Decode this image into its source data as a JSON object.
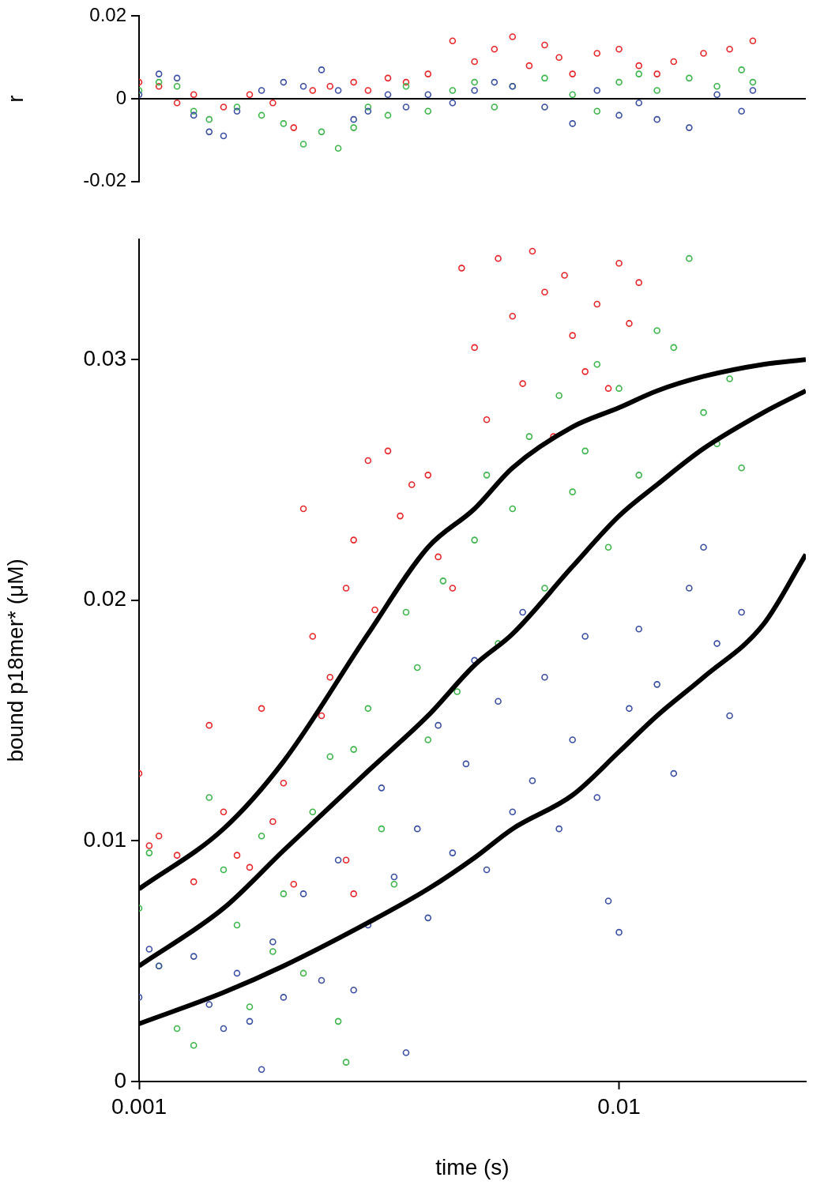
{
  "chart_data": [
    {
      "type": "scatter",
      "y_label": "r",
      "log": "x",
      "tick_labels": "y",
      "xlim": [
        0.001,
        0.0245
      ],
      "xticks": [
        0.001,
        0.01
      ],
      "ylim": [
        -0.02,
        0.02
      ],
      "yticks": [
        -0.02,
        0,
        0.02
      ],
      "series": [
        {
          "color": "#3a4fa3",
          "marker": "circle",
          "x": [
            0.001,
            0.0011,
            0.0012,
            0.0013,
            0.0014,
            0.0015,
            0.0016,
            0.0018,
            0.002,
            0.0022,
            0.0024,
            0.0026,
            0.0028,
            0.003,
            0.0033,
            0.0036,
            0.004,
            0.0045,
            0.005,
            0.0055,
            0.006,
            0.007,
            0.008,
            0.009,
            0.01,
            0.011,
            0.012,
            0.014,
            0.016,
            0.018,
            0.019
          ],
          "values": [
            0.001,
            0.006,
            0.005,
            -0.004,
            -0.008,
            -0.009,
            -0.003,
            0.002,
            0.004,
            0.003,
            0.007,
            0.002,
            -0.005,
            -0.003,
            0.001,
            -0.002,
            0.001,
            -0.001,
            0.002,
            0.004,
            0.003,
            -0.002,
            -0.006,
            0.002,
            -0.004,
            -0.001,
            -0.005,
            -0.007,
            0.001,
            -0.003,
            0.002
          ]
        },
        {
          "color": "#3cb54a",
          "marker": "circle",
          "x": [
            0.001,
            0.0011,
            0.0012,
            0.0013,
            0.0014,
            0.0016,
            0.0018,
            0.002,
            0.0022,
            0.0024,
            0.0026,
            0.0028,
            0.003,
            0.0033,
            0.0036,
            0.004,
            0.0045,
            0.005,
            0.0055,
            0.006,
            0.007,
            0.008,
            0.009,
            0.01,
            0.011,
            0.012,
            0.014,
            0.016,
            0.018,
            0.019
          ],
          "values": [
            0.002,
            0.004,
            0.003,
            -0.003,
            -0.005,
            -0.002,
            -0.004,
            -0.006,
            -0.011,
            -0.008,
            -0.012,
            -0.007,
            -0.002,
            -0.004,
            0.003,
            -0.003,
            0.002,
            0.004,
            -0.002,
            0.003,
            0.005,
            0.001,
            -0.003,
            0.004,
            0.006,
            0.002,
            0.005,
            0.003,
            0.007,
            0.004
          ]
        },
        {
          "color": "#e8262a",
          "marker": "circle",
          "x": [
            0.001,
            0.0011,
            0.0012,
            0.0013,
            0.0015,
            0.0017,
            0.0019,
            0.0021,
            0.0023,
            0.0025,
            0.0028,
            0.003,
            0.0033,
            0.0036,
            0.004,
            0.0045,
            0.005,
            0.0055,
            0.006,
            0.0065,
            0.007,
            0.0075,
            0.008,
            0.009,
            0.01,
            0.011,
            0.012,
            0.013,
            0.015,
            0.017,
            0.019
          ],
          "values": [
            0.004,
            0.003,
            -0.001,
            0.001,
            -0.002,
            0.001,
            -0.001,
            -0.007,
            0.002,
            0.003,
            0.004,
            0.002,
            0.005,
            0.004,
            0.006,
            0.014,
            0.009,
            0.012,
            0.015,
            0.008,
            0.013,
            0.01,
            0.006,
            0.011,
            0.012,
            0.008,
            0.006,
            0.009,
            0.011,
            0.012,
            0.014
          ]
        }
      ]
    },
    {
      "type": "scatter",
      "x_label": "time (s)",
      "y_label": "bound p18mer* (μM)",
      "log": "x",
      "xlim": [
        0.001,
        0.0245
      ],
      "xticks": [
        0.001,
        0.01
      ],
      "ylim": [
        0,
        0.035
      ],
      "yticks": [
        0,
        0.01,
        0.02,
        0.03
      ],
      "series": [
        {
          "color": "#3a4fa3",
          "marker": "circle",
          "x": [
            0.001,
            0.00105,
            0.0011,
            0.0013,
            0.0014,
            0.0015,
            0.0016,
            0.0017,
            0.0018,
            0.0019,
            0.002,
            0.0022,
            0.0024,
            0.0026,
            0.0028,
            0.003,
            0.0032,
            0.0034,
            0.0036,
            0.0038,
            0.004,
            0.0042,
            0.0045,
            0.0048,
            0.005,
            0.0053,
            0.0056,
            0.006,
            0.0063,
            0.0066,
            0.007,
            0.0075,
            0.008,
            0.0085,
            0.009,
            0.0095,
            0.01,
            0.0105,
            0.011,
            0.012,
            0.013,
            0.014,
            0.015,
            0.016,
            0.017,
            0.018
          ],
          "values": [
            0.0035,
            0.0055,
            0.0048,
            0.0052,
            0.0032,
            0.0022,
            0.0045,
            0.0025,
            0.0005,
            0.0058,
            0.0035,
            0.0078,
            0.0042,
            0.0092,
            0.0038,
            0.0065,
            0.0122,
            0.0085,
            0.0012,
            0.0105,
            0.0068,
            0.0148,
            0.0095,
            0.0132,
            0.0175,
            0.0088,
            0.0158,
            0.0112,
            0.0195,
            0.0125,
            0.0168,
            0.0105,
            0.0142,
            0.0185,
            0.0118,
            0.0075,
            0.0062,
            0.0155,
            0.0188,
            0.0165,
            0.0128,
            0.0205,
            0.0222,
            0.0182,
            0.0152,
            0.0195
          ]
        },
        {
          "color": "#3cb54a",
          "marker": "circle",
          "x": [
            0.001,
            0.00105,
            0.0011,
            0.0012,
            0.0013,
            0.0014,
            0.0015,
            0.0016,
            0.0017,
            0.0018,
            0.0019,
            0.002,
            0.0022,
            0.0023,
            0.0025,
            0.0026,
            0.0027,
            0.0028,
            0.003,
            0.0032,
            0.0034,
            0.0036,
            0.0038,
            0.004,
            0.0043,
            0.0046,
            0.005,
            0.0053,
            0.0056,
            0.006,
            0.0065,
            0.007,
            0.0075,
            0.008,
            0.0085,
            0.009,
            0.0095,
            0.01,
            0.011,
            0.012,
            0.013,
            0.014,
            0.015,
            0.016,
            0.017,
            0.018
          ],
          "values": [
            0.0072,
            0.0095,
            0.0048,
            0.0022,
            0.0015,
            0.0118,
            0.0088,
            0.0065,
            0.0031,
            0.0102,
            0.0054,
            0.0078,
            0.0045,
            0.0112,
            0.0135,
            0.0025,
            0.0008,
            0.0138,
            0.0155,
            0.0105,
            0.0082,
            0.0195,
            0.0172,
            0.0142,
            0.0208,
            0.0162,
            0.0225,
            0.0252,
            0.0182,
            0.0238,
            0.0268,
            0.0205,
            0.0285,
            0.0245,
            0.0262,
            0.0298,
            0.0222,
            0.0288,
            0.0252,
            0.0312,
            0.0305,
            0.0342,
            0.0278,
            0.0265,
            0.0292,
            0.0255
          ]
        },
        {
          "color": "#e8262a",
          "marker": "circle",
          "x": [
            0.001,
            0.00105,
            0.0011,
            0.0012,
            0.0013,
            0.0014,
            0.0015,
            0.0016,
            0.0017,
            0.0018,
            0.0019,
            0.002,
            0.0021,
            0.0022,
            0.0023,
            0.0024,
            0.0025,
            0.0027,
            0.0027,
            0.0028,
            0.0028,
            0.003,
            0.0031,
            0.0033,
            0.0035,
            0.0037,
            0.004,
            0.0042,
            0.0045,
            0.0047,
            0.005,
            0.0053,
            0.0056,
            0.006,
            0.0063,
            0.0066,
            0.007,
            0.0073,
            0.0077,
            0.008,
            0.0085,
            0.009,
            0.0095,
            0.01,
            0.0105,
            0.011
          ],
          "values": [
            0.0128,
            0.0098,
            0.0102,
            0.0094,
            0.0083,
            0.0148,
            0.0112,
            0.0094,
            0.0089,
            0.0155,
            0.0108,
            0.0124,
            0.0082,
            0.0238,
            0.0185,
            0.0152,
            0.0168,
            0.0205,
            0.0092,
            0.0225,
            0.0078,
            0.0258,
            0.0196,
            0.0262,
            0.0235,
            0.0248,
            0.0252,
            0.0218,
            0.0205,
            0.0338,
            0.0305,
            0.0275,
            0.0342,
            0.0318,
            0.029,
            0.0345,
            0.0328,
            0.0268,
            0.0335,
            0.031,
            0.0295,
            0.0323,
            0.0288,
            0.034,
            0.0315,
            0.0332
          ]
        },
        {
          "type": "line",
          "color": "#000000",
          "line_style": "solid",
          "x": [
            0.001,
            0.0015,
            0.002,
            0.003,
            0.004,
            0.005,
            0.006,
            0.008,
            0.01,
            0.012,
            0.015,
            0.02,
            0.0245
          ],
          "values": [
            0.0024,
            0.0037,
            0.0048,
            0.0066,
            0.008,
            0.0093,
            0.0105,
            0.0119,
            0.0137,
            0.0152,
            0.0168,
            0.019,
            0.0219
          ]
        },
        {
          "type": "line",
          "color": "#000000",
          "line_style": "solid",
          "x": [
            0.001,
            0.0015,
            0.002,
            0.003,
            0.004,
            0.005,
            0.006,
            0.008,
            0.01,
            0.012,
            0.015,
            0.02,
            0.0245
          ],
          "values": [
            0.0048,
            0.0072,
            0.0096,
            0.0129,
            0.0152,
            0.0173,
            0.0186,
            0.0214,
            0.0235,
            0.0248,
            0.0263,
            0.0278,
            0.0287
          ]
        },
        {
          "type": "line",
          "color": "#000000",
          "line_style": "solid",
          "x": [
            0.001,
            0.0015,
            0.002,
            0.003,
            0.004,
            0.005,
            0.006,
            0.008,
            0.01,
            0.012,
            0.015,
            0.02,
            0.0245
          ],
          "values": [
            0.008,
            0.0105,
            0.0133,
            0.0186,
            0.0222,
            0.0238,
            0.0255,
            0.0272,
            0.028,
            0.0287,
            0.0293,
            0.0298,
            0.03
          ]
        }
      ]
    }
  ]
}
